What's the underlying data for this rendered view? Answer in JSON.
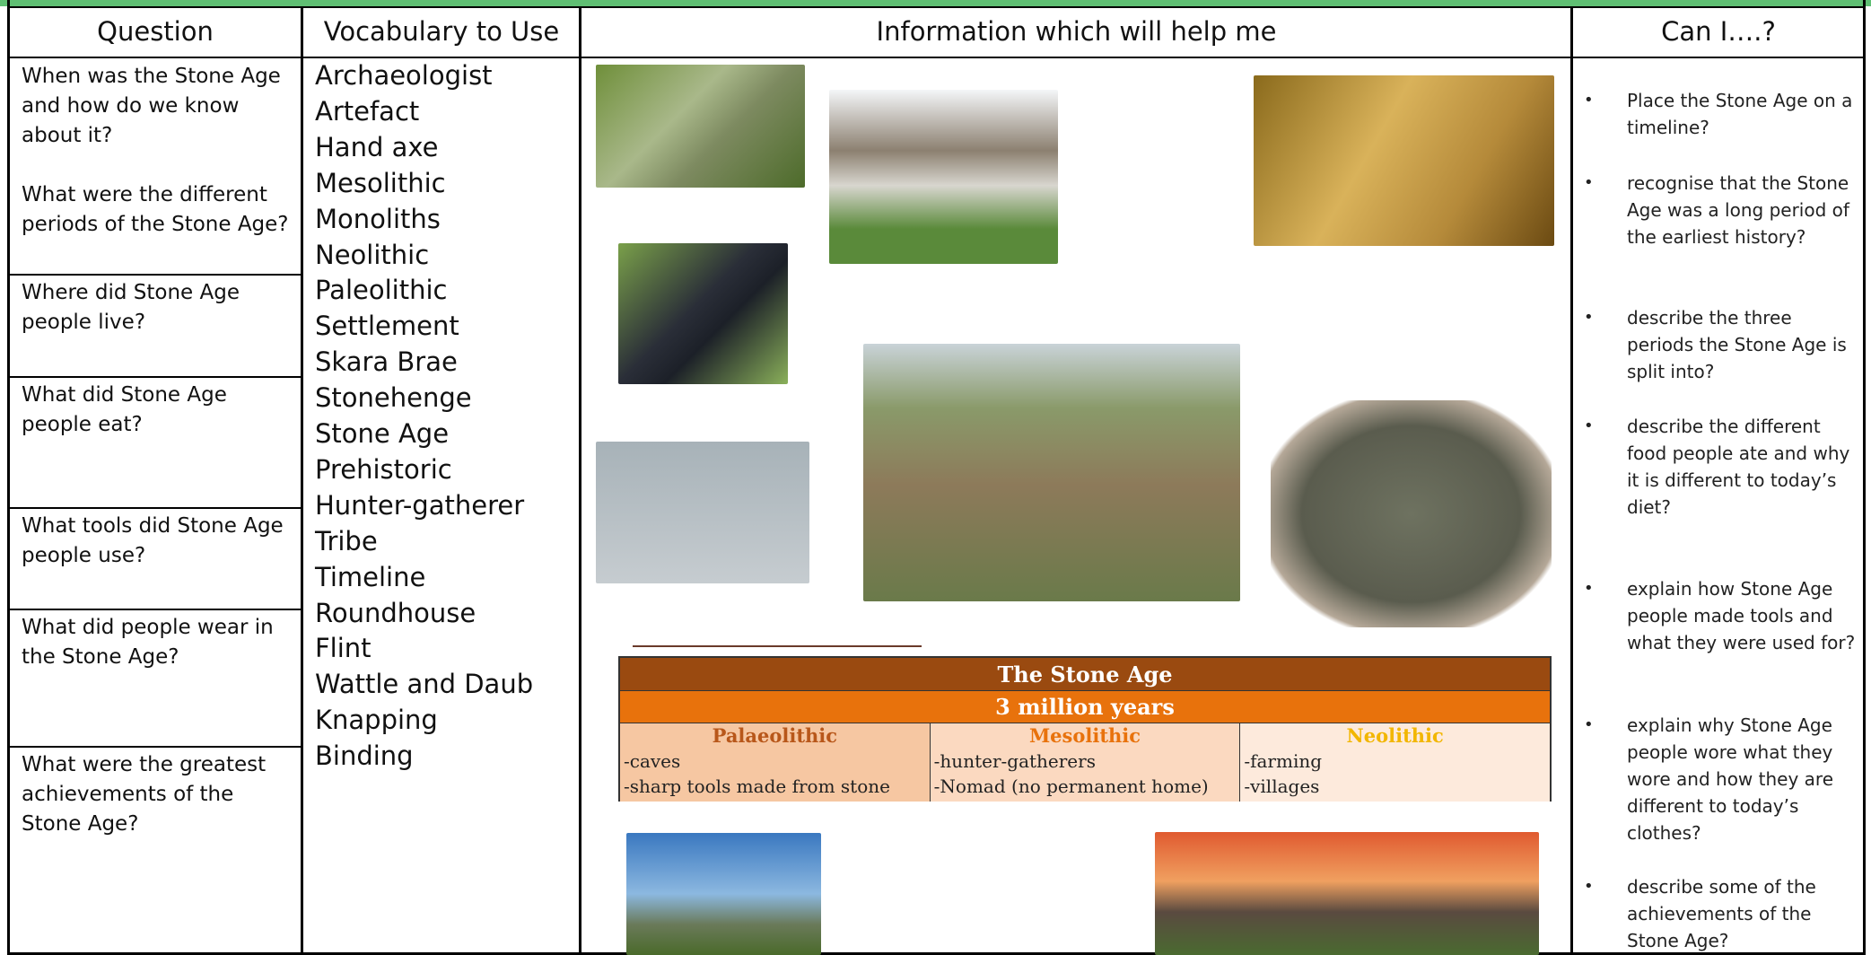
{
  "header": {
    "columns": [
      "Question",
      "Vocabulary to Use",
      "Information which will help me",
      "Can I….?"
    ]
  },
  "questions": [
    [
      "When was the Stone Age and how do we know about it?",
      "What were the different periods of the Stone Age?"
    ],
    [
      "Where did Stone Age people live?"
    ],
    [
      "What did Stone Age people eat?"
    ],
    [
      "What tools did Stone Age people use?"
    ],
    [
      "What did people wear in the Stone Age?"
    ],
    [
      "What were the greatest achievements of the Stone Age?"
    ]
  ],
  "vocabulary": [
    "Archaeologist",
    "Artefact",
    "Hand axe",
    "Mesolithic",
    "Monoliths",
    "Neolithic",
    "Paleolithic",
    "Settlement",
    "Skara Brae",
    "Stonehenge",
    "Stone Age",
    "Prehistoric",
    "Hunter-gatherer",
    "Tribe",
    "Timeline",
    "Roundhouse",
    "Flint",
    "Wattle and Daub",
    "Knapping",
    "Binding"
  ],
  "table": {
    "title": "The Stone Age",
    "subtitle": "3 million years",
    "periods": [
      {
        "name": "Palaeolithic",
        "items": [
          "-caves",
          "-sharp tools made from stone"
        ]
      },
      {
        "name": "Mesolithic",
        "items": [
          "-hunter-gatherers",
          "-Nomad (no permanent home)"
        ]
      },
      {
        "name": "Neolithic",
        "items": [
          "-farming",
          "-villages"
        ]
      }
    ]
  },
  "can_i": [
    "Place the Stone Age on a timeline?",
    "recognise that the Stone Age was a long period of the earliest history?",
    "describe the three periods the Stone Age is split into?",
    "describe the different food people ate and why it is different to today’s diet?",
    "explain how Stone Age people made tools and what they were used for?",
    "explain why Stone Age people wore what they wore and how they are different to today’s clothes?",
    "describe some of the achievements of the Stone Age?"
  ]
}
